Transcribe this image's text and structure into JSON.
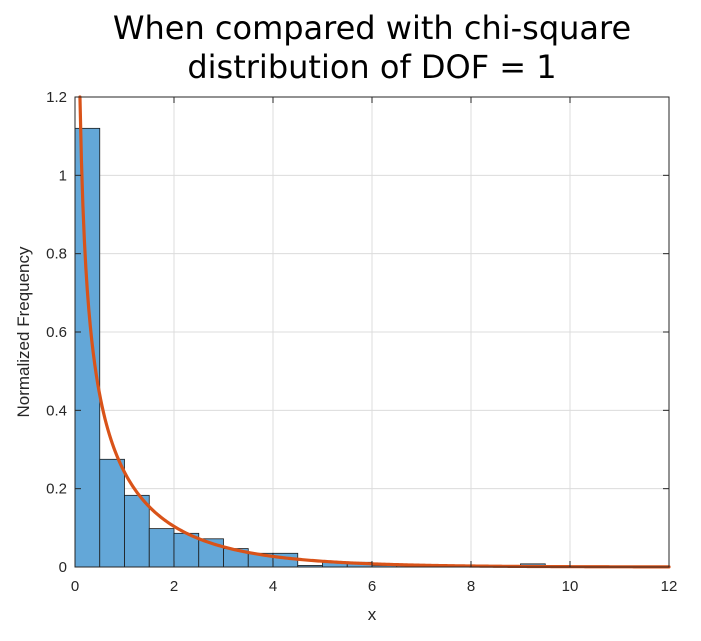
{
  "chart_data": {
    "type": "bar",
    "title_lines": [
      "When compared with chi-square",
      "distribution of DOF = 1"
    ],
    "xlabel": "x",
    "ylabel": "Normalized Frequency",
    "xlim": [
      0,
      12
    ],
    "ylim": [
      0,
      1.2
    ],
    "xticks": [
      0,
      2,
      4,
      6,
      8,
      10,
      12
    ],
    "yticks": [
      0,
      0.2,
      0.4,
      0.6,
      0.8,
      1,
      1.2
    ],
    "xtick_labels": [
      "0",
      "2",
      "4",
      "6",
      "8",
      "10",
      "12"
    ],
    "ytick_labels": [
      "0",
      "0.2",
      "0.4",
      "0.6",
      "0.8",
      "1",
      "1.2"
    ],
    "grid": true,
    "legend": "none",
    "bin_width": 0.5,
    "bins": [
      {
        "left": 0.0,
        "value": 1.12
      },
      {
        "left": 0.5,
        "value": 0.275
      },
      {
        "left": 1.0,
        "value": 0.183
      },
      {
        "left": 1.5,
        "value": 0.098
      },
      {
        "left": 2.0,
        "value": 0.086
      },
      {
        "left": 2.5,
        "value": 0.072
      },
      {
        "left": 3.0,
        "value": 0.047
      },
      {
        "left": 3.5,
        "value": 0.035
      },
      {
        "left": 4.0,
        "value": 0.035
      },
      {
        "left": 4.5,
        "value": 0.004
      },
      {
        "left": 5.0,
        "value": 0.012
      },
      {
        "left": 5.5,
        "value": 0.012
      },
      {
        "left": 6.0,
        "value": 0.004
      },
      {
        "left": 6.5,
        "value": 0.004
      },
      {
        "left": 7.0,
        "value": 0.004
      },
      {
        "left": 7.5,
        "value": 0.004
      },
      {
        "left": 8.0,
        "value": 0.0
      },
      {
        "left": 8.5,
        "value": 0.0
      },
      {
        "left": 9.0,
        "value": 0.008
      },
      {
        "left": 9.5,
        "value": 0.0
      },
      {
        "left": 10.0,
        "value": 0.0
      },
      {
        "left": 10.5,
        "value": 0.0
      },
      {
        "left": 11.0,
        "value": 0.0
      },
      {
        "left": 11.5,
        "value": 0.0
      }
    ],
    "curve": {
      "type": "line",
      "x_start": 0.1,
      "x_end": 12,
      "color": "#d95319"
    },
    "bar_color": "#63a7d8",
    "bar_edge_color": "#1a1a1a"
  }
}
